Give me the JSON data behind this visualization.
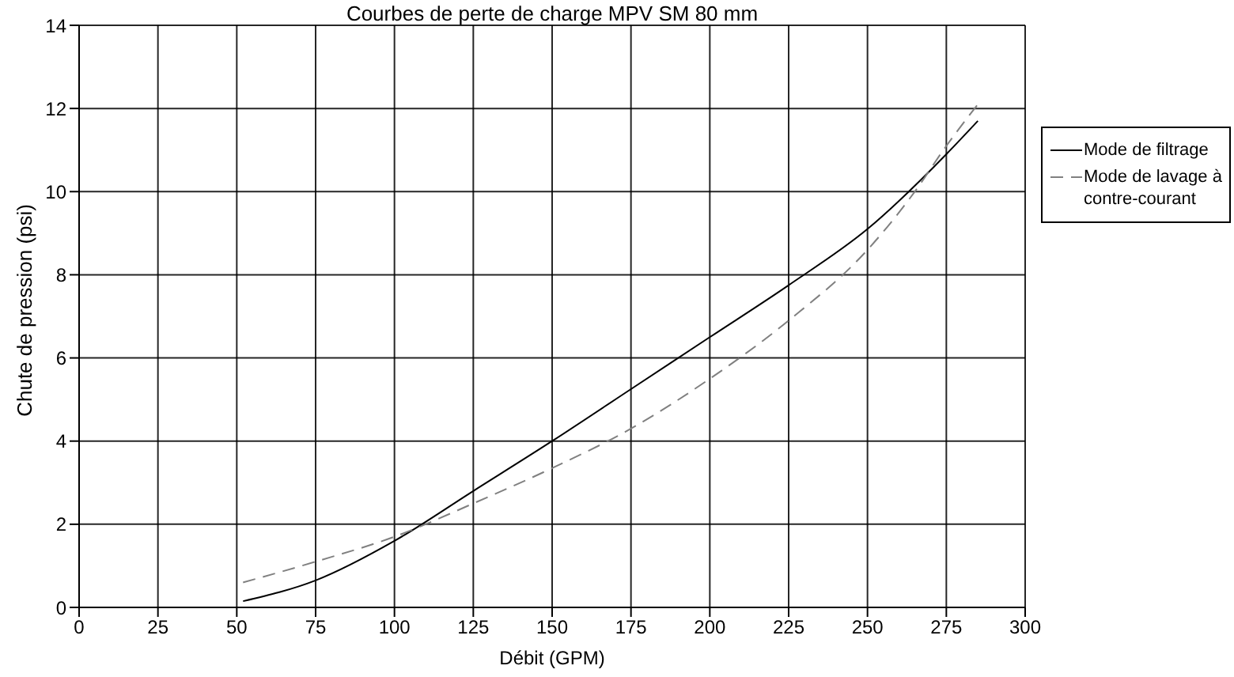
{
  "chart_data": {
    "type": "line",
    "title": "Courbes de perte de charge MPV SM 80 mm",
    "xlabel": "Débit (GPM)",
    "ylabel": "Chute de pression (psi)",
    "xlim": [
      0,
      300
    ],
    "xticks": [
      0,
      25,
      50,
      75,
      100,
      125,
      150,
      175,
      200,
      225,
      250,
      275,
      300
    ],
    "ylim": [
      0,
      14
    ],
    "yticks": [
      0,
      2,
      4,
      6,
      8,
      10,
      12,
      14
    ],
    "grid": true,
    "legend": "right",
    "marker": "none",
    "series": [
      {
        "name": "Mode de filtrage",
        "color": "#000000",
        "line_style": "solid",
        "x": [
          52,
          75,
          100,
          125,
          150,
          175,
          200,
          225,
          250,
          275,
          285
        ],
        "values": [
          0.15,
          0.65,
          1.6,
          2.8,
          4.0,
          5.25,
          6.5,
          7.75,
          9.1,
          10.9,
          11.7
        ]
      },
      {
        "name": "Mode de lavage à contre-courant",
        "color": "#808080",
        "line_style": "dashed",
        "x": [
          52,
          75,
          100,
          125,
          150,
          175,
          200,
          225,
          250,
          265,
          275,
          285
        ],
        "values": [
          0.6,
          1.1,
          1.7,
          2.5,
          3.35,
          4.3,
          5.5,
          6.9,
          8.6,
          10.0,
          11.1,
          12.1
        ]
      }
    ]
  }
}
